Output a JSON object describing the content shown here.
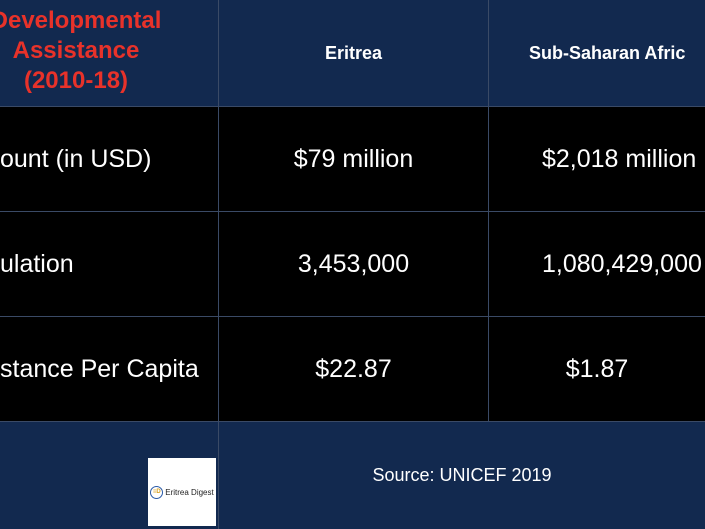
{
  "header": {
    "title_line1": "Developmental",
    "title_line2": "Assistance",
    "title_line3": "(2010-18)",
    "columns": [
      "Eritrea",
      "Sub-Saharan Afric"
    ]
  },
  "rows": [
    {
      "label": "ount (in USD)",
      "eritrea": "$79 million",
      "ssa": "$2,018 million"
    },
    {
      "label": "ulation",
      "eritrea": "3,453,000",
      "ssa": "1,080,429,000"
    },
    {
      "label": "stance Per Capita",
      "eritrea": "$22.87",
      "ssa": "$1.87"
    }
  ],
  "footer": {
    "logo_text": "Eritrea Digest",
    "logo_mark": "≡D",
    "source": "Source: UNICEF 2019"
  },
  "colors": {
    "header_bg": "#12294f",
    "title_red": "#e8322a",
    "row_bg": "#000000",
    "text": "#ffffff"
  }
}
